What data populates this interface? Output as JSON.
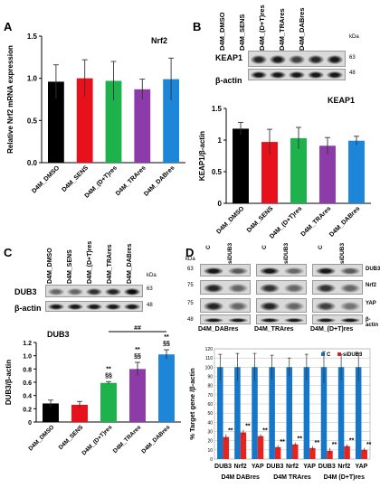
{
  "panels": {
    "A": "A",
    "B": "B",
    "C": "C",
    "D": "D"
  },
  "kda": "kDa",
  "blot_B": {
    "lanes": [
      "D4M_DMSO",
      "D4M_SENS",
      "D4M_(D+T)res",
      "D4M_TRAres",
      "D4M_DABres"
    ],
    "rows": [
      {
        "label": "KEAP1",
        "mw": "63"
      },
      {
        "label": "β-actin",
        "mw": "48"
      }
    ]
  },
  "blot_C": {
    "lanes": [
      "D4M_DMSO",
      "D4M_SENS",
      "D4M_(D+T)res",
      "D4M_TRAres",
      "D4M_DABres"
    ],
    "rows": [
      {
        "label": "DUB3",
        "mw": "63"
      },
      {
        "label": "β-actin",
        "mw": "48"
      }
    ]
  },
  "blot_D": {
    "lane_labels": [
      "C",
      "siDUB3",
      "C",
      "siDUB3",
      "C",
      "siDUB3"
    ],
    "mw": [
      "63",
      "75",
      "75",
      "48"
    ],
    "rows": [
      "DUB3",
      "Nrf2",
      "YAP",
      "β-actin"
    ],
    "groups": [
      "D4M_DABres",
      "D4M_TRAres",
      "D4M_(D+T)res"
    ]
  },
  "chart_data": [
    {
      "type": "bar",
      "panel": "A",
      "title": "Nrf2",
      "ylabel": "Relative Nrf2  mRNA expression",
      "ylim": [
        0,
        1.5
      ],
      "yticks": [
        "0.0",
        "0.5",
        "1.0",
        "1.5"
      ],
      "categories": [
        "D4M_DMSO",
        "D4M_SENS",
        "D4M_(D+T)res",
        "D4M_TRAres",
        "D4M_DABres"
      ],
      "values": [
        0.96,
        1.0,
        0.97,
        0.87,
        0.99
      ],
      "errors": [
        0.2,
        0.22,
        0.23,
        0.12,
        0.25
      ],
      "colors": [
        "#000000",
        "#e8101a",
        "#1db24b",
        "#8d3ba8",
        "#1e86d9"
      ]
    },
    {
      "type": "bar",
      "panel": "B",
      "title": "KEAP1",
      "ylabel": "KEAP1/β-actin",
      "ylim": [
        0,
        1.5
      ],
      "yticks": [
        "0",
        "0.5",
        "1",
        "1.5"
      ],
      "categories": [
        "D4M_DMSO",
        "D4M_SENS",
        "D4M_(D+T)res",
        "D4M_TRAres",
        "D4M_DABres"
      ],
      "values": [
        1.18,
        0.97,
        1.03,
        0.91,
        0.99
      ],
      "errors": [
        0.1,
        0.2,
        0.17,
        0.13,
        0.07
      ],
      "colors": [
        "#000000",
        "#e8101a",
        "#1db24b",
        "#8d3ba8",
        "#1e86d9"
      ]
    },
    {
      "type": "bar",
      "panel": "C",
      "title": "DUB3",
      "ylabel": "DUB3/β-actin",
      "ylim": [
        0,
        1.2
      ],
      "yticks": [
        "0",
        "0.2",
        "0.4",
        "0.6",
        "0.8",
        "1.0",
        "1.2"
      ],
      "categories": [
        "D4M_DMSO",
        "D4M_SENS",
        "D4M_(D+T)res",
        "D4M_TRAres",
        "D4M_DABres"
      ],
      "values": [
        0.28,
        0.26,
        0.59,
        0.8,
        1.02
      ],
      "errors": [
        0.05,
        0.05,
        0.02,
        0.1,
        0.07
      ],
      "colors": [
        "#000000",
        "#e8101a",
        "#1db24b",
        "#8d3ba8",
        "#1e86d9"
      ],
      "annotations": [
        {
          "index": 2,
          "lines": [
            "**",
            "§§"
          ]
        },
        {
          "index": 3,
          "lines": [
            "**",
            "§§"
          ]
        },
        {
          "index": 4,
          "lines": [
            "**",
            "§§"
          ]
        }
      ],
      "bracket_label": "##"
    },
    {
      "type": "bar",
      "panel": "D",
      "ylabel": "% Target gene /β-actin",
      "ylim": [
        0,
        120
      ],
      "yticks": [
        "0",
        "10",
        "20",
        "30",
        "40",
        "50",
        "60",
        "70",
        "80",
        "90",
        "100",
        "110",
        "120"
      ],
      "legend": [
        "C",
        "siDUB3"
      ],
      "categories": [
        "DUB3",
        "Nrf2",
        "YAP",
        "DUB3",
        "Nrf2",
        "YAP",
        "DUB3",
        "Nrf2",
        "YAP"
      ],
      "groups": [
        "D4M  DABres",
        "D4M  TRAres",
        "D4M  (D+T)res"
      ],
      "series": [
        {
          "name": "C",
          "values": [
            100,
            100,
            100,
            100,
            100,
            100,
            100,
            100,
            100
          ],
          "color": "#1677c8"
        },
        {
          "name": "siDUB3",
          "values": [
            24,
            29,
            25,
            13,
            16,
            12,
            9,
            14,
            10
          ],
          "color": "#e52420"
        }
      ],
      "errors_c": [
        14,
        15,
        15,
        13,
        10,
        14,
        17,
        14,
        15
      ],
      "errors_s": [
        3,
        3,
        2,
        2,
        2,
        2,
        3,
        2,
        2
      ],
      "significance": "**"
    }
  ]
}
